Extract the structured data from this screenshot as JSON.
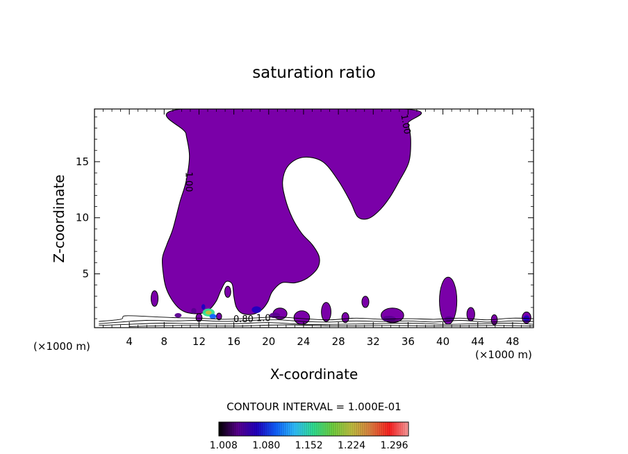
{
  "chart_data": {
    "type": "heatmap",
    "title": "saturation ratio",
    "xlabel": "X-coordinate",
    "ylabel": "Z-coordinate",
    "x_unit_left": "(×1000 m)",
    "x_unit_right": "(×1000 m)",
    "xlim": [
      0,
      50.4
    ],
    "ylim": [
      0.2,
      19.7
    ],
    "x_ticks": [
      4,
      8,
      12,
      16,
      20,
      24,
      28,
      32,
      36,
      40,
      44,
      48
    ],
    "y_ticks": [
      5,
      10,
      15
    ],
    "contour_labels": [
      {
        "text": "1.00",
        "x": 10.5,
        "y": 13.2
      },
      {
        "text": "1.00",
        "x": 35.4,
        "y": 18.3
      },
      {
        "text": "0.80",
        "x": 17.1,
        "y": 0.7
      },
      {
        "text": "1.0",
        "x": 19.4,
        "y": 0.8
      }
    ],
    "contour_interval_text": "CONTOUR INTERVAL = 1.000E-01",
    "colorbar": {
      "ticks": [
        "1.008",
        "1.080",
        "1.152",
        "1.224",
        "1.296"
      ],
      "tick_values": [
        1.008,
        1.08,
        1.152,
        1.224,
        1.296
      ],
      "vmin": 1.0,
      "vmax": 1.32,
      "colors": [
        "#000000",
        "#5a0090",
        "#2000c0",
        "#1060ff",
        "#30c0ff",
        "#30e090",
        "#70d040",
        "#c0c040",
        "#e08040",
        "#ff2020",
        "#ffa0a0"
      ]
    },
    "fill_color": "#7a00a8",
    "main_cloud_outline": [
      [
        10.0,
        19.7
      ],
      [
        10.5,
        17.5
      ],
      [
        10.9,
        15.5
      ],
      [
        10.5,
        13.2
      ],
      [
        9.8,
        11.4
      ],
      [
        9.0,
        9.0
      ],
      [
        8.3,
        7.6
      ],
      [
        7.8,
        6.4
      ],
      [
        7.9,
        5.0
      ],
      [
        8.2,
        3.8
      ],
      [
        8.8,
        2.8
      ],
      [
        9.6,
        2.0
      ],
      [
        10.4,
        1.6
      ],
      [
        11.4,
        1.45
      ],
      [
        12.4,
        1.5
      ],
      [
        13.3,
        1.9
      ],
      [
        14.0,
        2.6
      ],
      [
        14.5,
        3.5
      ],
      [
        15.1,
        4.3
      ],
      [
        15.8,
        4.1
      ],
      [
        16.0,
        3.0
      ],
      [
        16.3,
        2.0
      ],
      [
        17.0,
        1.45
      ],
      [
        18.2,
        1.4
      ],
      [
        19.2,
        1.8
      ],
      [
        19.9,
        2.5
      ],
      [
        20.4,
        3.4
      ],
      [
        21.5,
        4.2
      ],
      [
        23.0,
        4.2
      ],
      [
        24.4,
        4.6
      ],
      [
        25.6,
        5.5
      ],
      [
        25.8,
        6.5
      ],
      [
        25.0,
        7.6
      ],
      [
        23.8,
        8.6
      ],
      [
        22.7,
        10.0
      ],
      [
        21.9,
        11.7
      ],
      [
        21.6,
        13.3
      ],
      [
        22.3,
        14.7
      ],
      [
        24.0,
        15.4
      ],
      [
        26.2,
        15.0
      ],
      [
        28.0,
        13.3
      ],
      [
        29.4,
        11.4
      ],
      [
        30.2,
        10.1
      ],
      [
        31.3,
        9.9
      ],
      [
        32.5,
        10.5
      ],
      [
        33.8,
        11.7
      ],
      [
        35.0,
        13.3
      ],
      [
        36.1,
        15.0
      ],
      [
        36.3,
        17.0
      ],
      [
        36.0,
        18.4
      ],
      [
        35.5,
        19.7
      ]
    ],
    "small_cells": [
      {
        "cx": 6.9,
        "cy": 2.8,
        "rx": 0.4,
        "ry": 0.7
      },
      {
        "cx": 15.3,
        "cy": 3.4,
        "rx": 0.35,
        "ry": 0.5
      },
      {
        "cx": 21.3,
        "cy": 1.45,
        "rx": 0.8,
        "ry": 0.5
      },
      {
        "cx": 23.8,
        "cy": 1.1,
        "rx": 0.9,
        "ry": 0.6
      },
      {
        "cx": 26.6,
        "cy": 1.6,
        "rx": 0.55,
        "ry": 0.85
      },
      {
        "cx": 28.8,
        "cy": 1.1,
        "rx": 0.4,
        "ry": 0.45
      },
      {
        "cx": 31.1,
        "cy": 2.5,
        "rx": 0.4,
        "ry": 0.5
      },
      {
        "cx": 34.2,
        "cy": 1.3,
        "rx": 1.3,
        "ry": 0.65
      },
      {
        "cx": 40.6,
        "cy": 2.6,
        "rx": 1.0,
        "ry": 2.1
      },
      {
        "cx": 43.2,
        "cy": 1.4,
        "rx": 0.45,
        "ry": 0.6
      },
      {
        "cx": 45.9,
        "cy": 0.9,
        "rx": 0.35,
        "ry": 0.45
      },
      {
        "cx": 49.6,
        "cy": 1.1,
        "rx": 0.5,
        "ry": 0.5
      },
      {
        "cx": 12.0,
        "cy": 1.1,
        "rx": 0.35,
        "ry": 0.35
      },
      {
        "cx": 14.3,
        "cy": 1.2,
        "rx": 0.3,
        "ry": 0.3
      }
    ],
    "hot_spots": [
      {
        "cx": 13.1,
        "cy": 1.55,
        "rx": 0.7,
        "ry": 0.35,
        "value": 1.17
      },
      {
        "cx": 12.5,
        "cy": 2.05,
        "rx": 0.22,
        "ry": 0.25,
        "value": 1.06
      },
      {
        "cx": 13.6,
        "cy": 1.2,
        "rx": 0.4,
        "ry": 0.22,
        "value": 1.09
      },
      {
        "cx": 11.4,
        "cy": 1.7,
        "rx": 0.3,
        "ry": 0.25,
        "value": 1.04
      },
      {
        "cx": 18.6,
        "cy": 1.8,
        "rx": 0.55,
        "ry": 0.3,
        "value": 1.05
      },
      {
        "cx": 20.7,
        "cy": 1.3,
        "rx": 0.6,
        "ry": 0.25,
        "value": 1.04
      },
      {
        "cx": 33.8,
        "cy": 1.0,
        "rx": 0.8,
        "ry": 0.25,
        "value": 1.04
      },
      {
        "cx": 49.6,
        "cy": 1.0,
        "rx": 0.35,
        "ry": 0.3,
        "value": 1.06
      },
      {
        "cx": 40.7,
        "cy": 1.0,
        "rx": 0.5,
        "ry": 0.22,
        "value": 1.03
      },
      {
        "cx": 9.6,
        "cy": 1.3,
        "rx": 0.4,
        "ry": 0.2,
        "value": 1.03
      }
    ],
    "surface_contours": [
      [
        [
          0.5,
          0.75
        ],
        [
          3.0,
          0.95
        ],
        [
          3.5,
          1.25
        ],
        [
          6.0,
          1.2
        ],
        [
          9.0,
          1.1
        ],
        [
          12.0,
          1.05
        ],
        [
          15.0,
          0.95
        ],
        [
          18.0,
          1.05
        ],
        [
          21.0,
          1.15
        ],
        [
          24.0,
          1.0
        ],
        [
          27.0,
          0.9
        ],
        [
          30.0,
          1.05
        ],
        [
          33.0,
          0.95
        ],
        [
          36.0,
          1.0
        ],
        [
          39.0,
          0.95
        ],
        [
          42.0,
          1.05
        ],
        [
          45.0,
          0.9
        ],
        [
          48.0,
          1.05
        ],
        [
          50.4,
          1.0
        ]
      ],
      [
        [
          0.5,
          0.55
        ],
        [
          3.0,
          0.7
        ],
        [
          6.0,
          0.85
        ],
        [
          9.0,
          0.8
        ],
        [
          12.0,
          0.85
        ],
        [
          15.0,
          0.75
        ],
        [
          18.0,
          0.85
        ],
        [
          21.0,
          0.9
        ],
        [
          24.0,
          0.75
        ],
        [
          27.0,
          0.7
        ],
        [
          30.0,
          0.8
        ],
        [
          33.0,
          0.75
        ],
        [
          36.0,
          0.8
        ],
        [
          39.0,
          0.7
        ],
        [
          42.0,
          0.85
        ],
        [
          45.0,
          0.7
        ],
        [
          48.0,
          0.8
        ],
        [
          50.4,
          0.75
        ]
      ],
      [
        [
          0.5,
          0.4
        ],
        [
          4.0,
          0.5
        ],
        [
          8.0,
          0.6
        ],
        [
          12.0,
          0.55
        ],
        [
          16.0,
          0.55
        ],
        [
          20.0,
          0.65
        ],
        [
          24.0,
          0.5
        ],
        [
          28.0,
          0.5
        ],
        [
          32.0,
          0.55
        ],
        [
          36.0,
          0.6
        ],
        [
          40.0,
          0.5
        ],
        [
          44.0,
          0.55
        ],
        [
          48.0,
          0.6
        ],
        [
          50.4,
          0.5
        ]
      ],
      [
        [
          4.0,
          0.3
        ],
        [
          10.0,
          0.4
        ],
        [
          16.0,
          0.35
        ],
        [
          22.0,
          0.45
        ],
        [
          28.0,
          0.35
        ],
        [
          34.0,
          0.4
        ],
        [
          40.0,
          0.35
        ],
        [
          46.0,
          0.4
        ],
        [
          50.4,
          0.35
        ]
      ]
    ]
  }
}
